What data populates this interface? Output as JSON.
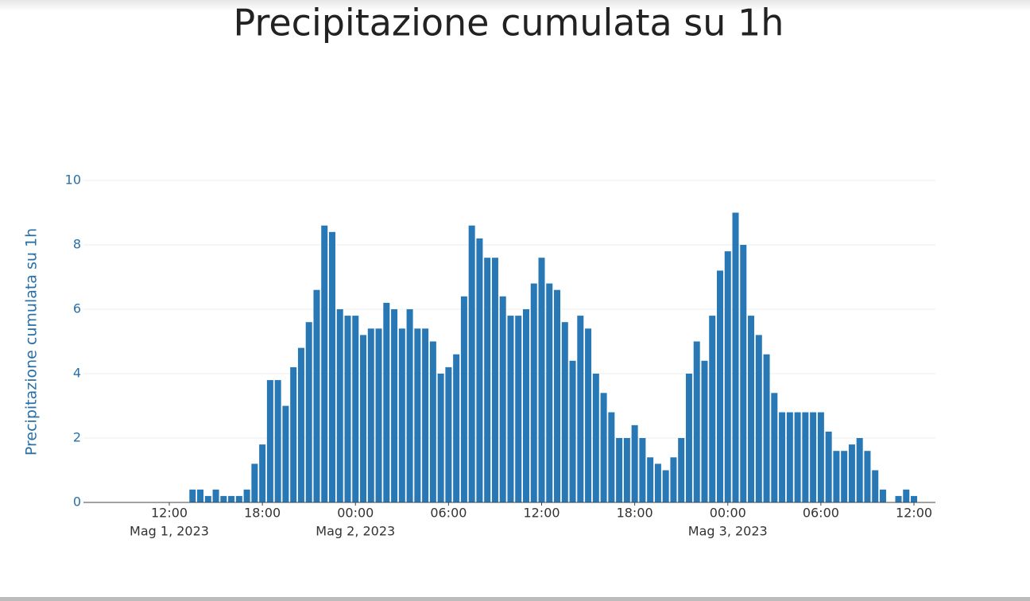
{
  "chart_data": {
    "type": "bar",
    "title": "Precipitazione cumulata su 1h",
    "y_label": "Precipitazione cumulata su 1h",
    "color": "#2878b5",
    "x": [
      "2023-05-01T13:30",
      "2023-05-01T14:00",
      "2023-05-01T14:30",
      "2023-05-01T15:00",
      "2023-05-01T15:30",
      "2023-05-01T16:00",
      "2023-05-01T16:30",
      "2023-05-01T17:00",
      "2023-05-01T17:30",
      "2023-05-01T18:00",
      "2023-05-01T18:30",
      "2023-05-01T19:00",
      "2023-05-01T19:30",
      "2023-05-01T20:00",
      "2023-05-01T20:30",
      "2023-05-01T21:00",
      "2023-05-01T21:30",
      "2023-05-01T22:00",
      "2023-05-01T22:30",
      "2023-05-01T23:00",
      "2023-05-01T23:30",
      "2023-05-02T00:00",
      "2023-05-02T00:30",
      "2023-05-02T01:00",
      "2023-05-02T01:30",
      "2023-05-02T02:00",
      "2023-05-02T02:30",
      "2023-05-02T03:00",
      "2023-05-02T03:30",
      "2023-05-02T04:00",
      "2023-05-02T04:30",
      "2023-05-02T05:00",
      "2023-05-02T05:30",
      "2023-05-02T06:00",
      "2023-05-02T06:30",
      "2023-05-02T07:00",
      "2023-05-02T07:30",
      "2023-05-02T08:00",
      "2023-05-02T08:30",
      "2023-05-02T09:00",
      "2023-05-02T09:30",
      "2023-05-02T10:00",
      "2023-05-02T10:30",
      "2023-05-02T11:00",
      "2023-05-02T11:30",
      "2023-05-02T12:00",
      "2023-05-02T12:30",
      "2023-05-02T13:00",
      "2023-05-02T13:30",
      "2023-05-02T14:00",
      "2023-05-02T14:30",
      "2023-05-02T15:00",
      "2023-05-02T15:30",
      "2023-05-02T16:00",
      "2023-05-02T16:30",
      "2023-05-02T17:00",
      "2023-05-02T17:30",
      "2023-05-02T18:00",
      "2023-05-02T18:30",
      "2023-05-02T19:00",
      "2023-05-02T19:30",
      "2023-05-02T20:00",
      "2023-05-02T20:30",
      "2023-05-02T21:00",
      "2023-05-02T21:30",
      "2023-05-02T22:00",
      "2023-05-02T22:30",
      "2023-05-02T23:00",
      "2023-05-02T23:30",
      "2023-05-03T00:00",
      "2023-05-03T00:30",
      "2023-05-03T01:00",
      "2023-05-03T01:30",
      "2023-05-03T02:00",
      "2023-05-03T02:30",
      "2023-05-03T03:00",
      "2023-05-03T03:30",
      "2023-05-03T04:00",
      "2023-05-03T04:30",
      "2023-05-03T05:00",
      "2023-05-03T05:30",
      "2023-05-03T06:00",
      "2023-05-03T06:30",
      "2023-05-03T07:00",
      "2023-05-03T07:30",
      "2023-05-03T08:00",
      "2023-05-03T08:30",
      "2023-05-03T09:00",
      "2023-05-03T09:30",
      "2023-05-03T10:00",
      "2023-05-03T10:30",
      "2023-05-03T11:00",
      "2023-05-03T11:30",
      "2023-05-03T12:00"
    ],
    "values": [
      0.4,
      0.4,
      0.2,
      0.4,
      0.2,
      0.2,
      0.2,
      0.4,
      1.2,
      1.8,
      3.8,
      3.8,
      3.0,
      4.2,
      4.8,
      5.6,
      6.6,
      8.6,
      8.4,
      6.0,
      5.8,
      5.8,
      5.2,
      5.4,
      5.4,
      6.2,
      6.0,
      5.4,
      6.0,
      5.4,
      5.4,
      5.0,
      4.0,
      4.2,
      4.6,
      6.4,
      8.6,
      8.2,
      7.6,
      7.6,
      6.4,
      5.8,
      5.8,
      6.0,
      6.8,
      7.6,
      6.8,
      6.6,
      5.6,
      4.4,
      5.8,
      5.4,
      4.0,
      3.4,
      2.8,
      2.0,
      2.0,
      2.4,
      2.0,
      1.4,
      1.2,
      1.0,
      1.4,
      2.0,
      4.0,
      5.0,
      4.4,
      5.8,
      7.2,
      7.8,
      9.0,
      8.0,
      5.8,
      5.2,
      4.6,
      3.4,
      2.8,
      2.8,
      2.8,
      2.8,
      2.8,
      2.8,
      2.2,
      1.6,
      1.6,
      1.8,
      2.0,
      1.6,
      1.0,
      0.4,
      0,
      0.2,
      0.4,
      0.2
    ],
    "xlim": [
      "2023-05-01T06:28",
      "2023-05-03T13:23"
    ],
    "xticks": [
      {
        "value": "2023-05-01T12:00",
        "label": "12:00"
      },
      {
        "value": "2023-05-01T18:00",
        "label": "18:00"
      },
      {
        "value": "2023-05-02T00:00",
        "label": "00:00"
      },
      {
        "value": "2023-05-02T06:00",
        "label": "06:00"
      },
      {
        "value": "2023-05-02T12:00",
        "label": "12:00"
      },
      {
        "value": "2023-05-02T18:00",
        "label": "18:00"
      },
      {
        "value": "2023-05-03T00:00",
        "label": "00:00"
      },
      {
        "value": "2023-05-03T06:00",
        "label": "06:00"
      },
      {
        "value": "2023-05-03T12:00",
        "label": "12:00"
      }
    ],
    "x_date_labels": [
      {
        "value": "2023-05-01T12:00",
        "label": "Mag 1, 2023"
      },
      {
        "value": "2023-05-02T00:00",
        "label": "Mag 2, 2023"
      },
      {
        "value": "2023-05-03T00:00",
        "label": "Mag 3, 2023"
      }
    ],
    "ylim": [
      0,
      10
    ],
    "yticks": [
      0,
      2,
      4,
      6,
      8,
      10
    ],
    "grid": true
  }
}
